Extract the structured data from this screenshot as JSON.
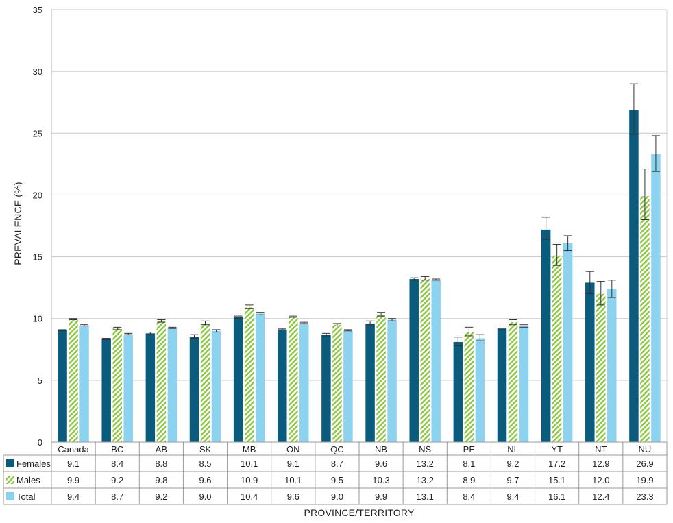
{
  "chart_data": {
    "type": "bar",
    "title": "",
    "ylabel": "PREVALENCE (%)",
    "xlabel": "PROVINCE/TERRITORY",
    "ylim": [
      0,
      35
    ],
    "yticks": [
      0,
      5,
      10,
      15,
      20,
      25,
      30,
      35
    ],
    "grid": true,
    "legend": "data-table-left",
    "categories": [
      "Canada",
      "BC",
      "AB",
      "SK",
      "MB",
      "ON",
      "QC",
      "NB",
      "NS",
      "PE",
      "NL",
      "YT",
      "NT",
      "NU"
    ],
    "series": [
      {
        "name": "Females",
        "color": "#0b5c7c",
        "pattern": "solid",
        "values": [
          9.1,
          8.4,
          8.8,
          8.5,
          10.1,
          9.1,
          8.7,
          9.6,
          13.2,
          8.1,
          9.2,
          17.2,
          12.9,
          26.9
        ],
        "labels": [
          "9.1",
          "8.4",
          "8.8",
          "8.5",
          "10.1",
          "9.1",
          "8.7",
          "9.6",
          "13.2",
          "8.1",
          "9.2",
          "17.2",
          "12.9",
          "26.9"
        ],
        "ci_low": [
          9.0,
          8.3,
          8.7,
          8.4,
          10.0,
          9.1,
          8.6,
          9.5,
          13.1,
          7.8,
          9.1,
          16.4,
          12.0,
          24.9
        ],
        "ci_high": [
          9.1,
          8.4,
          8.9,
          8.7,
          10.2,
          9.2,
          8.8,
          9.8,
          13.3,
          8.5,
          9.4,
          18.2,
          13.8,
          29.0
        ]
      },
      {
        "name": "Males",
        "color": "#8cc63f",
        "pattern": "hatch",
        "values": [
          9.9,
          9.2,
          9.8,
          9.6,
          10.9,
          10.1,
          9.5,
          10.3,
          13.2,
          8.9,
          9.7,
          15.1,
          12.0,
          19.9
        ],
        "labels": [
          "9.9",
          "9.2",
          "9.8",
          "9.6",
          "10.9",
          "10.1",
          "9.5",
          "10.3",
          "13.2",
          "8.9",
          "9.7",
          "15.1",
          "12.0",
          "19.9"
        ],
        "ci_low": [
          9.9,
          9.1,
          9.7,
          9.5,
          10.8,
          10.1,
          9.4,
          10.2,
          13.1,
          8.6,
          9.5,
          14.3,
          11.1,
          18.0
        ],
        "ci_high": [
          10.0,
          9.3,
          9.9,
          9.8,
          11.1,
          10.2,
          9.6,
          10.5,
          13.4,
          9.3,
          9.9,
          16.0,
          13.0,
          22.1
        ]
      },
      {
        "name": "Total",
        "color": "#8dd3f0",
        "pattern": "solid",
        "values": [
          9.4,
          8.7,
          9.2,
          9.0,
          10.4,
          9.6,
          9.0,
          9.9,
          13.1,
          8.4,
          9.4,
          16.1,
          12.4,
          23.3
        ],
        "labels": [
          "9.4",
          "8.7",
          "9.2",
          "9.0",
          "10.4",
          "9.6",
          "9.0",
          "9.9",
          "13.1",
          "8.4",
          "9.4",
          "16.1",
          "12.4",
          "23.3"
        ],
        "ci_low": [
          9.4,
          8.7,
          9.2,
          8.9,
          10.3,
          9.6,
          9.0,
          9.8,
          13.1,
          8.2,
          9.3,
          15.5,
          11.7,
          21.9
        ],
        "ci_high": [
          9.5,
          8.8,
          9.3,
          9.1,
          10.5,
          9.7,
          9.1,
          10.0,
          13.2,
          8.7,
          9.5,
          16.7,
          13.1,
          24.8
        ]
      }
    ]
  }
}
